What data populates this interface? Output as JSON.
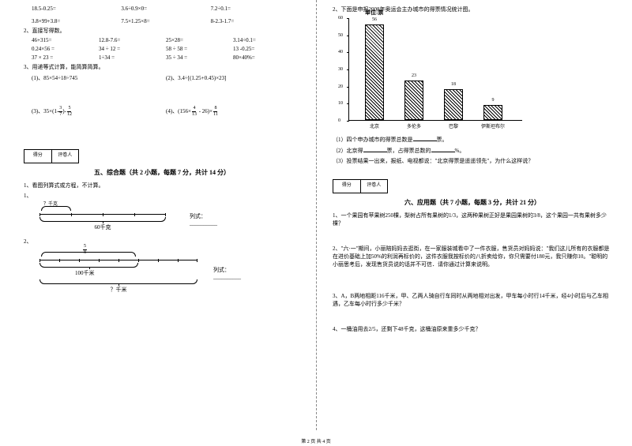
{
  "left": {
    "eq_rows": [
      [
        "18.5-0.25=",
        "3.6÷0.9×0=",
        "7.2÷0.1="
      ],
      [
        "3.8×99+3.8=",
        "7.5×1.25×8=",
        "8-2.3-1.7="
      ]
    ],
    "q2_title": "2、直接写得数。",
    "q2_rows": [
      [
        "46+315=",
        "12.8-7.6=",
        "25×28=",
        "3.14÷0.1="
      ],
      [
        "0.24×56 =",
        "34 ÷ 12 =",
        "58 ÷ 58 =",
        "13 -0.25="
      ],
      [
        "37 × 23 =",
        "1÷34 =",
        "35 ÷ 34 =",
        "80×40%="
      ]
    ],
    "q3_title": "3、用递等式计算，能简算简算。",
    "q3_items": {
      "i1": "(1)、85×54÷18÷745",
      "i2": "(2)、3.4÷[(1.25+0.45)×23]",
      "i3_pre": "(3)、35×(1-",
      "i3_f1n": "3",
      "i3_f1d": "7",
      "i3_mid": ")-",
      "i3_f2n": "5",
      "i3_f2d": "12",
      "i4_pre": "(4)、(156×",
      "i4_f1n": "4",
      "i4_f1d": "13",
      "i4_mid": " - 26)×",
      "i4_f2n": "8",
      "i4_f2d": "11"
    },
    "score_a": "得分",
    "score_b": "评卷人",
    "sec5_title": "五、综合题（共 2 小题，每题 7 分，共计 14 分）",
    "sec5_q1": "1、看图列算式或方程，不计算。",
    "sub1": "1、",
    "d1_qmark": "？千克",
    "d1_total": "60千克",
    "d1_formula": "列式：__________",
    "sub2": "2、",
    "d2_fracn": "5",
    "d2_fracd": "8",
    "d2_total": "100千米",
    "d2_qmark": "？千米",
    "d2_formula": "列式：__________"
  },
  "right": {
    "q2_title": "2、下面是申报2008年奥运会主办城市的得票情况统计图。",
    "chart": {
      "unit": "单位:票",
      "ymax": 60,
      "ystep": 10,
      "bars": [
        {
          "label": "北京",
          "value": 56
        },
        {
          "label": "多伦多",
          "value": 23
        },
        {
          "label": "巴黎",
          "value": 18
        },
        {
          "label": "伊斯坦布尔",
          "value": 9
        }
      ],
      "bar_color": "#000000",
      "bg": "#ffffff"
    },
    "sub_q1_a": "（1）四个申办城市的得票总数是",
    "sub_q1_b": "票。",
    "sub_q2_a": "（2）北京得",
    "sub_q2_b": "票，占得票总数的",
    "sub_q2_c": "%。",
    "sub_q3": "（3）投票结果一出来，报纸、电视都说：\"北京得票是遥遥领先\"，为什么这样说？",
    "sec6_title": "六、应用题（共 7 小题，每题 3 分，共计 21 分）",
    "app_q1": "1、一个果园有苹果树250棵，梨树占所有果树的1/3，这两种果树正好是果园果树的3/8，这个果园一共有果树多少棵？",
    "app_q2": "2、\"六·一\"期间，小丽陪妈妈去逛街，在一家服装城看中了一件衣服，售货员对妈妈说：\"我们这儿所有的衣服都是在进价基础上加50%的利润再标价的，这件衣服我按标价的八折卖给你，你只需要付180元，我只赚你10。\"聪明的小丽思考后，发现售货员说的话并不可信．请你通过计算来说明。",
    "app_q3": "3、A，B两地相距116千米，甲、乙两人骑自行车同时从两地相对出发，甲车每小时行14千米，经4小时后与乙车相遇，乙车每小时行多少千米？",
    "app_q4": "4、一桶油用去2/5，还剩下48千克，这桶油原来重多少千克？"
  },
  "footer": "第 2 页 共 4 页"
}
